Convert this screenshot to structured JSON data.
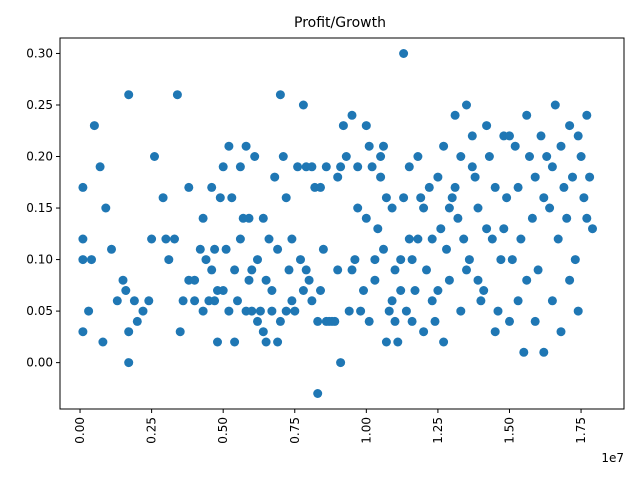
{
  "chart_data": {
    "type": "scatter",
    "title": "Profit/Growth",
    "xlabel": "",
    "ylabel": "",
    "x_offset_label": "1e7",
    "xlim": [
      -0.07,
      1.9
    ],
    "ylim": [
      -0.045,
      0.315
    ],
    "x_ticks": [
      0,
      0.25,
      0.5,
      0.75,
      1.0,
      1.25,
      1.5,
      1.75
    ],
    "x_tick_labels": [
      "0.00",
      "0.25",
      "0.50",
      "0.75",
      "1.00",
      "1.25",
      "1.50",
      "1.75"
    ],
    "y_ticks": [
      0,
      0.05,
      0.1,
      0.15,
      0.2,
      0.25,
      0.3
    ],
    "y_tick_labels": [
      "0.00",
      "0.05",
      "0.10",
      "0.15",
      "0.20",
      "0.25",
      "0.30"
    ],
    "grid": false,
    "legend": "none",
    "marker_color": "#1f77b4",
    "points": [
      [
        0.01,
        0.03
      ],
      [
        0.01,
        0.1
      ],
      [
        0.01,
        0.12
      ],
      [
        0.01,
        0.17
      ],
      [
        0.03,
        0.05
      ],
      [
        0.04,
        0.1
      ],
      [
        0.05,
        0.23
      ],
      [
        0.07,
        0.19
      ],
      [
        0.08,
        0.02
      ],
      [
        0.09,
        0.15
      ],
      [
        0.11,
        0.11
      ],
      [
        0.13,
        0.06
      ],
      [
        0.15,
        0.08
      ],
      [
        0.16,
        0.07
      ],
      [
        0.17,
        0.0
      ],
      [
        0.17,
        0.03
      ],
      [
        0.17,
        0.26
      ],
      [
        0.19,
        0.06
      ],
      [
        0.2,
        0.04
      ],
      [
        0.22,
        0.05
      ],
      [
        0.24,
        0.06
      ],
      [
        0.25,
        0.12
      ],
      [
        0.26,
        0.2
      ],
      [
        0.29,
        0.16
      ],
      [
        0.3,
        0.12
      ],
      [
        0.31,
        0.1
      ],
      [
        0.33,
        0.12
      ],
      [
        0.34,
        0.26
      ],
      [
        0.35,
        0.03
      ],
      [
        0.36,
        0.06
      ],
      [
        0.38,
        0.08
      ],
      [
        0.38,
        0.17
      ],
      [
        0.4,
        0.06
      ],
      [
        0.4,
        0.08
      ],
      [
        0.42,
        0.11
      ],
      [
        0.43,
        0.05
      ],
      [
        0.43,
        0.14
      ],
      [
        0.44,
        0.1
      ],
      [
        0.45,
        0.06
      ],
      [
        0.46,
        0.17
      ],
      [
        0.46,
        0.09
      ],
      [
        0.47,
        0.06
      ],
      [
        0.47,
        0.11
      ],
      [
        0.48,
        0.02
      ],
      [
        0.48,
        0.07
      ],
      [
        0.49,
        0.16
      ],
      [
        0.5,
        0.19
      ],
      [
        0.5,
        0.07
      ],
      [
        0.51,
        0.11
      ],
      [
        0.52,
        0.21
      ],
      [
        0.52,
        0.05
      ],
      [
        0.53,
        0.16
      ],
      [
        0.54,
        0.09
      ],
      [
        0.54,
        0.02
      ],
      [
        0.55,
        0.06
      ],
      [
        0.56,
        0.12
      ],
      [
        0.56,
        0.19
      ],
      [
        0.57,
        0.14
      ],
      [
        0.58,
        0.21
      ],
      [
        0.58,
        0.05
      ],
      [
        0.59,
        0.08
      ],
      [
        0.59,
        0.14
      ],
      [
        0.6,
        0.09
      ],
      [
        0.6,
        0.05
      ],
      [
        0.61,
        0.2
      ],
      [
        0.62,
        0.04
      ],
      [
        0.62,
        0.1
      ],
      [
        0.63,
        0.05
      ],
      [
        0.64,
        0.03
      ],
      [
        0.64,
        0.14
      ],
      [
        0.65,
        0.02
      ],
      [
        0.65,
        0.08
      ],
      [
        0.66,
        0.12
      ],
      [
        0.67,
        0.05
      ],
      [
        0.67,
        0.07
      ],
      [
        0.68,
        0.18
      ],
      [
        0.69,
        0.02
      ],
      [
        0.69,
        0.11
      ],
      [
        0.7,
        0.04
      ],
      [
        0.7,
        0.26
      ],
      [
        0.71,
        0.2
      ],
      [
        0.72,
        0.05
      ],
      [
        0.72,
        0.16
      ],
      [
        0.73,
        0.09
      ],
      [
        0.74,
        0.12
      ],
      [
        0.74,
        0.06
      ],
      [
        0.75,
        0.05
      ],
      [
        0.76,
        0.19
      ],
      [
        0.77,
        0.1
      ],
      [
        0.78,
        0.25
      ],
      [
        0.78,
        0.07
      ],
      [
        0.79,
        0.19
      ],
      [
        0.79,
        0.09
      ],
      [
        0.8,
        0.08
      ],
      [
        0.81,
        0.06
      ],
      [
        0.81,
        0.19
      ],
      [
        0.82,
        0.17
      ],
      [
        0.83,
        -0.03
      ],
      [
        0.83,
        0.04
      ],
      [
        0.84,
        0.07
      ],
      [
        0.84,
        0.17
      ],
      [
        0.85,
        0.11
      ],
      [
        0.86,
        0.04
      ],
      [
        0.86,
        0.19
      ],
      [
        0.87,
        0.04
      ],
      [
        0.88,
        0.04
      ],
      [
        0.89,
        0.04
      ],
      [
        0.9,
        0.09
      ],
      [
        0.9,
        0.18
      ],
      [
        0.91,
        0.19
      ],
      [
        0.91,
        0.0
      ],
      [
        0.92,
        0.23
      ],
      [
        0.93,
        0.2
      ],
      [
        0.94,
        0.05
      ],
      [
        0.95,
        0.24
      ],
      [
        0.95,
        0.09
      ],
      [
        0.96,
        0.1
      ],
      [
        0.97,
        0.15
      ],
      [
        0.97,
        0.19
      ],
      [
        0.98,
        0.05
      ],
      [
        0.99,
        0.07
      ],
      [
        1.0,
        0.23
      ],
      [
        1.0,
        0.14
      ],
      [
        1.01,
        0.04
      ],
      [
        1.01,
        0.21
      ],
      [
        1.02,
        0.19
      ],
      [
        1.03,
        0.08
      ],
      [
        1.03,
        0.1
      ],
      [
        1.04,
        0.13
      ],
      [
        1.05,
        0.18
      ],
      [
        1.05,
        0.2
      ],
      [
        1.06,
        0.21
      ],
      [
        1.06,
        0.11
      ],
      [
        1.07,
        0.02
      ],
      [
        1.07,
        0.16
      ],
      [
        1.08,
        0.05
      ],
      [
        1.09,
        0.15
      ],
      [
        1.09,
        0.06
      ],
      [
        1.1,
        0.09
      ],
      [
        1.1,
        0.04
      ],
      [
        1.11,
        0.02
      ],
      [
        1.12,
        0.07
      ],
      [
        1.12,
        0.1
      ],
      [
        1.13,
        0.3
      ],
      [
        1.13,
        0.16
      ],
      [
        1.14,
        0.05
      ],
      [
        1.15,
        0.19
      ],
      [
        1.15,
        0.12
      ],
      [
        1.16,
        0.04
      ],
      [
        1.16,
        0.1
      ],
      [
        1.17,
        0.07
      ],
      [
        1.18,
        0.12
      ],
      [
        1.18,
        0.2
      ],
      [
        1.19,
        0.16
      ],
      [
        1.2,
        0.15
      ],
      [
        1.2,
        0.03
      ],
      [
        1.21,
        0.09
      ],
      [
        1.22,
        0.17
      ],
      [
        1.23,
        0.12
      ],
      [
        1.23,
        0.06
      ],
      [
        1.24,
        0.04
      ],
      [
        1.25,
        0.18
      ],
      [
        1.25,
        0.07
      ],
      [
        1.26,
        0.13
      ],
      [
        1.27,
        0.21
      ],
      [
        1.27,
        0.02
      ],
      [
        1.28,
        0.11
      ],
      [
        1.29,
        0.08
      ],
      [
        1.29,
        0.15
      ],
      [
        1.3,
        0.16
      ],
      [
        1.31,
        0.24
      ],
      [
        1.31,
        0.17
      ],
      [
        1.32,
        0.14
      ],
      [
        1.33,
        0.05
      ],
      [
        1.33,
        0.2
      ],
      [
        1.34,
        0.12
      ],
      [
        1.35,
        0.25
      ],
      [
        1.35,
        0.09
      ],
      [
        1.36,
        0.1
      ],
      [
        1.37,
        0.19
      ],
      [
        1.37,
        0.22
      ],
      [
        1.38,
        0.18
      ],
      [
        1.39,
        0.15
      ],
      [
        1.39,
        0.08
      ],
      [
        1.4,
        0.06
      ],
      [
        1.41,
        0.07
      ],
      [
        1.42,
        0.13
      ],
      [
        1.42,
        0.23
      ],
      [
        1.43,
        0.2
      ],
      [
        1.44,
        0.12
      ],
      [
        1.45,
        0.17
      ],
      [
        1.45,
        0.03
      ],
      [
        1.46,
        0.05
      ],
      [
        1.47,
        0.1
      ],
      [
        1.48,
        0.13
      ],
      [
        1.48,
        0.22
      ],
      [
        1.49,
        0.16
      ],
      [
        1.5,
        0.04
      ],
      [
        1.5,
        0.22
      ],
      [
        1.51,
        0.1
      ],
      [
        1.52,
        0.21
      ],
      [
        1.53,
        0.06
      ],
      [
        1.53,
        0.17
      ],
      [
        1.54,
        0.12
      ],
      [
        1.55,
        0.01
      ],
      [
        1.56,
        0.24
      ],
      [
        1.56,
        0.08
      ],
      [
        1.57,
        0.2
      ],
      [
        1.58,
        0.14
      ],
      [
        1.59,
        0.18
      ],
      [
        1.59,
        0.04
      ],
      [
        1.6,
        0.09
      ],
      [
        1.61,
        0.22
      ],
      [
        1.62,
        0.16
      ],
      [
        1.62,
        0.01
      ],
      [
        1.63,
        0.2
      ],
      [
        1.64,
        0.15
      ],
      [
        1.65,
        0.06
      ],
      [
        1.65,
        0.19
      ],
      [
        1.66,
        0.25
      ],
      [
        1.67,
        0.12
      ],
      [
        1.68,
        0.21
      ],
      [
        1.68,
        0.03
      ],
      [
        1.69,
        0.17
      ],
      [
        1.7,
        0.14
      ],
      [
        1.71,
        0.08
      ],
      [
        1.71,
        0.23
      ],
      [
        1.72,
        0.18
      ],
      [
        1.73,
        0.1
      ],
      [
        1.74,
        0.22
      ],
      [
        1.74,
        0.05
      ],
      [
        1.75,
        0.2
      ],
      [
        1.76,
        0.16
      ],
      [
        1.77,
        0.14
      ],
      [
        1.77,
        0.24
      ],
      [
        1.78,
        0.18
      ],
      [
        1.79,
        0.13
      ]
    ]
  }
}
